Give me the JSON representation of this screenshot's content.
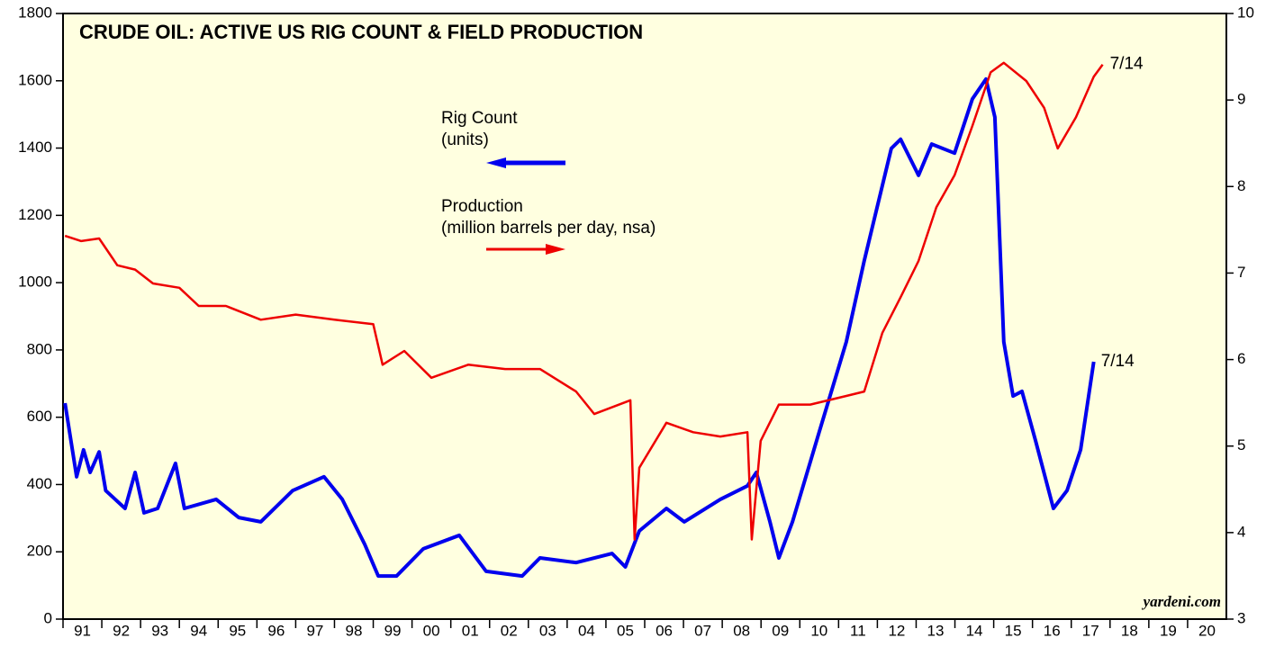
{
  "chart_data": {
    "type": "line",
    "title": "CRUDE OIL: ACTIVE US RIG COUNT & FIELD PRODUCTION",
    "source": "yardeni.com",
    "xlim": [
      1991,
      2021
    ],
    "xticks": [
      {
        "value": 1991.5,
        "label": "91"
      },
      {
        "value": 1992.5,
        "label": "92"
      },
      {
        "value": 1993.5,
        "label": "93"
      },
      {
        "value": 1994.5,
        "label": "94"
      },
      {
        "value": 1995.5,
        "label": "95"
      },
      {
        "value": 1996.5,
        "label": "96"
      },
      {
        "value": 1997.5,
        "label": "97"
      },
      {
        "value": 1998.5,
        "label": "98"
      },
      {
        "value": 1999.5,
        "label": "99"
      },
      {
        "value": 2000.5,
        "label": "00"
      },
      {
        "value": 2001.5,
        "label": "01"
      },
      {
        "value": 2002.5,
        "label": "02"
      },
      {
        "value": 2003.5,
        "label": "03"
      },
      {
        "value": 2004.5,
        "label": "04"
      },
      {
        "value": 2005.5,
        "label": "05"
      },
      {
        "value": 2006.5,
        "label": "06"
      },
      {
        "value": 2007.5,
        "label": "07"
      },
      {
        "value": 2008.5,
        "label": "08"
      },
      {
        "value": 2009.5,
        "label": "09"
      },
      {
        "value": 2010.5,
        "label": "10"
      },
      {
        "value": 2011.5,
        "label": "11"
      },
      {
        "value": 2012.5,
        "label": "12"
      },
      {
        "value": 2013.5,
        "label": "13"
      },
      {
        "value": 2014.5,
        "label": "14"
      },
      {
        "value": 2015.5,
        "label": "15"
      },
      {
        "value": 2016.5,
        "label": "16"
      },
      {
        "value": 2017.5,
        "label": "17"
      },
      {
        "value": 2018.5,
        "label": "18"
      },
      {
        "value": 2019.5,
        "label": "19"
      },
      {
        "value": 2020.5,
        "label": "20"
      }
    ],
    "ylim": [
      0,
      1800
    ],
    "yticks": [
      0,
      200,
      400,
      600,
      800,
      1000,
      1200,
      1400,
      1600,
      1800
    ],
    "y2lim": [
      3,
      10
    ],
    "y2ticks": [
      3,
      4,
      5,
      6,
      7,
      8,
      9,
      10
    ],
    "series": [
      {
        "name": "Rig Count",
        "unit": "(units)",
        "color": "#0000ee",
        "axis": "y",
        "x": [
          1991.05,
          1991.35,
          1991.53,
          1991.7,
          1991.93,
          1992.1,
          1992.6,
          1992.86,
          1993.09,
          1993.44,
          1993.9,
          1994.13,
          1994.95,
          1995.53,
          1996.1,
          1996.92,
          1997.73,
          1998.2,
          1998.78,
          1999.13,
          1999.6,
          2000.29,
          2001.22,
          2001.91,
          2002.84,
          2003.3,
          2004.23,
          2005.16,
          2005.5,
          2005.86,
          2006.56,
          2007.02,
          2007.95,
          2008.65,
          2008.88,
          2009.23,
          2009.46,
          2009.81,
          2010.5,
          2011.2,
          2011.66,
          2012.36,
          2012.6,
          2013.06,
          2013.4,
          2013.99,
          2014.45,
          2014.8,
          2015.03,
          2015.26,
          2015.5,
          2015.73,
          2016.08,
          2016.54,
          2016.89,
          2017.24,
          2017.58
        ],
        "values": [
          642,
          423,
          503,
          436,
          497,
          382,
          329,
          436,
          316,
          329,
          463,
          329,
          356,
          302,
          289,
          382,
          423,
          356,
          222,
          128,
          128,
          209,
          249,
          142,
          128,
          182,
          168,
          195,
          155,
          262,
          329,
          289,
          356,
          396,
          436,
          289,
          182,
          289,
          556,
          824,
          1065,
          1399,
          1426,
          1319,
          1412,
          1385,
          1546,
          1605,
          1492,
          824,
          663,
          677,
          530,
          329,
          382,
          503,
          765
        ]
      },
      {
        "name": "Production",
        "unit": "(million barrels per day, nsa)",
        "color": "#ee0000",
        "axis": "y2",
        "x": [
          1991.05,
          1991.47,
          1991.93,
          1992.4,
          1992.86,
          1993.32,
          1994.0,
          1994.5,
          1995.2,
          1996.1,
          1997.0,
          1998.0,
          1999.0,
          1999.24,
          1999.8,
          2000.5,
          2001.45,
          2002.4,
          2003.3,
          2004.23,
          2004.7,
          2005.63,
          2005.74,
          2005.86,
          2006.56,
          2007.25,
          2007.95,
          2008.65,
          2008.76,
          2008.99,
          2009.46,
          2010.27,
          2011.2,
          2011.66,
          2012.13,
          2012.6,
          2013.06,
          2013.52,
          2013.99,
          2014.45,
          2014.92,
          2015.26,
          2015.84,
          2016.3,
          2016.65,
          2017.12,
          2017.58,
          2017.81
        ],
        "values": [
          7.43,
          7.37,
          7.4,
          7.09,
          7.04,
          6.88,
          6.83,
          6.62,
          6.62,
          6.46,
          6.52,
          6.46,
          6.41,
          5.94,
          6.1,
          5.79,
          5.94,
          5.89,
          5.89,
          5.63,
          5.37,
          5.53,
          3.92,
          4.75,
          5.27,
          5.16,
          5.11,
          5.16,
          3.92,
          5.06,
          5.48,
          5.48,
          5.58,
          5.63,
          6.31,
          6.72,
          7.14,
          7.76,
          8.13,
          8.7,
          9.32,
          9.43,
          9.22,
          8.91,
          8.44,
          8.8,
          9.27,
          9.41
        ]
      }
    ],
    "annotations": [
      "7/14",
      "7/14"
    ]
  }
}
